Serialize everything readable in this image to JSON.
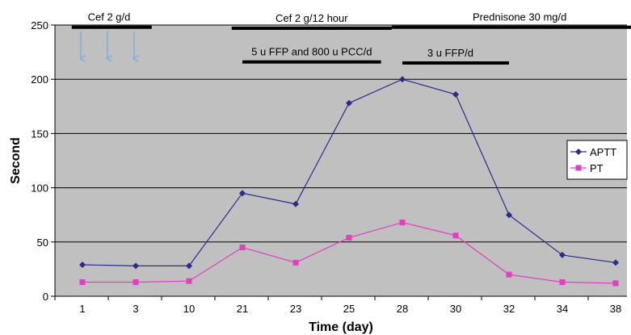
{
  "chart_data": {
    "type": "line",
    "xlabel": "Time (day)",
    "ylabel": "Second",
    "categories": [
      "1",
      "3",
      "10",
      "21",
      "23",
      "25",
      "28",
      "30",
      "32",
      "34",
      "38"
    ],
    "ylim": [
      0,
      250
    ],
    "yticks": [
      0,
      50,
      100,
      150,
      200,
      250
    ],
    "grid": true,
    "legend_position": "right",
    "series": [
      {
        "name": "APTT",
        "color": "#2b2b8c",
        "marker": "diamond",
        "values": [
          29,
          28,
          28,
          95,
          85,
          178,
          200,
          186,
          75,
          38,
          31
        ]
      },
      {
        "name": "PT",
        "color": "#e040c0",
        "marker": "square",
        "values": [
          13,
          13,
          14,
          45,
          31,
          54,
          68,
          56,
          20,
          13,
          12
        ]
      }
    ],
    "annotations": [
      {
        "label": "Cef 2 g/d",
        "y": 248,
        "from": -0.2,
        "to": 1.3,
        "text_at": 0.5
      },
      {
        "label": "Cef 2 g/12 hour",
        "y": 247,
        "from": 2.8,
        "to": 5.8,
        "text_at": 4.3
      },
      {
        "label": "Prednisone 30 mg/d",
        "y": 248,
        "from": 5.8,
        "to": 10.6,
        "text_at": 8.2
      },
      {
        "label": "5 u FFP and 800 u PCC/d",
        "y": 216,
        "from": 3.0,
        "to": 5.6,
        "text_at": 4.3
      },
      {
        "label": "3 u FFP/d",
        "y": 215,
        "from": 6.0,
        "to": 8.0,
        "text_at": 6.9
      }
    ],
    "arrows": [
      0,
      0.5,
      1.0
    ]
  }
}
